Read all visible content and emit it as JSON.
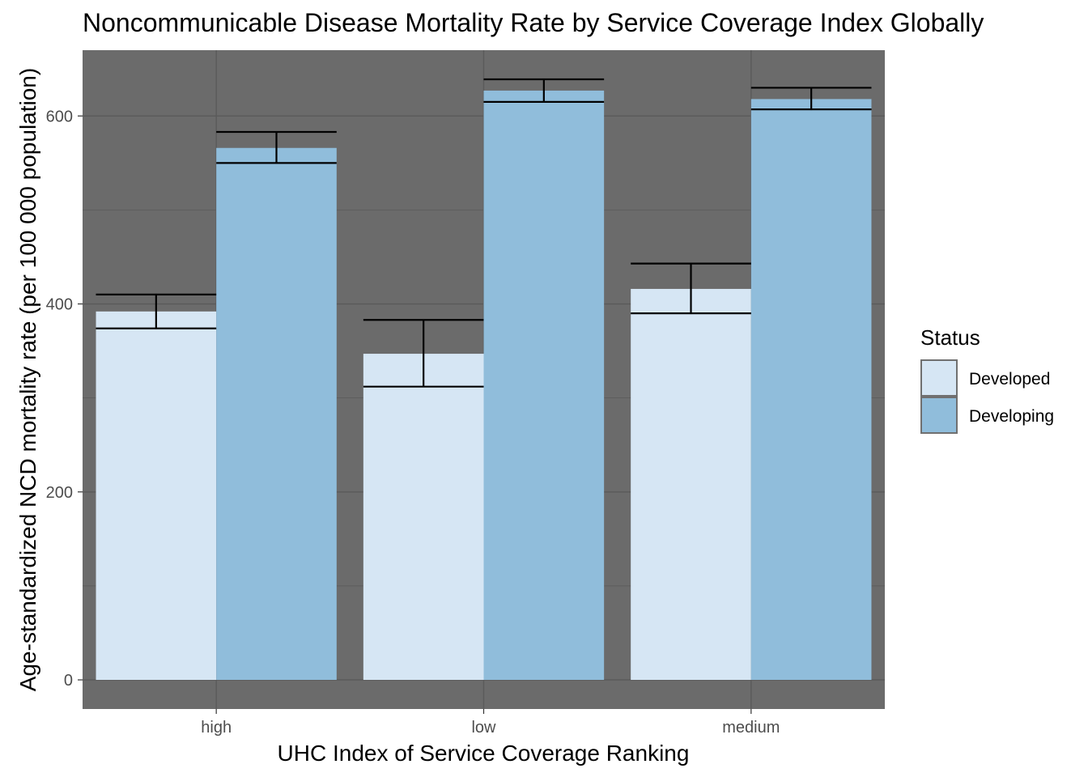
{
  "chart_data": {
    "type": "bar",
    "title": "Noncommunicable Disease Mortality Rate by Service Coverage Index Globally",
    "xlabel": "UHC Index of Service Coverage Ranking",
    "ylabel": "Age-standardized NCD mortality rate  (per 100 000 population)",
    "categories": [
      "high",
      "low",
      "medium"
    ],
    "ylim": [
      -31,
      670
    ],
    "yticks": [
      0,
      200,
      400,
      600
    ],
    "grid": true,
    "panel_background": "#6b6b6b",
    "legend": {
      "title": "Status",
      "position": "right"
    },
    "series": [
      {
        "name": "Developed",
        "color": "#d6e6f4",
        "values": [
          392,
          347,
          416
        ],
        "error_low": [
          374,
          312,
          390
        ],
        "error_high": [
          410,
          383,
          443
        ]
      },
      {
        "name": "Developing",
        "color": "#90bddb",
        "values": [
          566,
          627,
          618
        ],
        "error_low": [
          550,
          615,
          607
        ],
        "error_high": [
          583,
          639,
          630
        ]
      }
    ]
  }
}
